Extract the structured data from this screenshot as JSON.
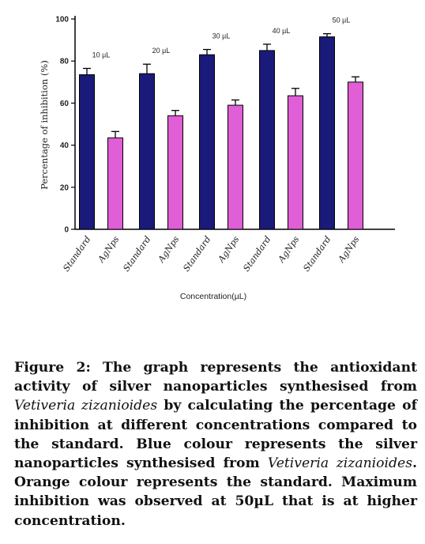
{
  "chart_data": {
    "type": "bar",
    "ylabel": "Percentage of inhibition (%)",
    "xlabel": "Concentration(µL)",
    "ylim": [
      0,
      100
    ],
    "yticks": [
      "0",
      "20",
      "40",
      "60",
      "80",
      "100"
    ],
    "groups": [
      "10 µL",
      "20 µL",
      "30 µL",
      "40 µL",
      "50 µL"
    ],
    "series": [
      {
        "name": "Standard",
        "color": "#1a1a7a",
        "values": [
          73.5,
          74,
          83,
          85,
          91.5
        ],
        "errors": [
          3,
          4.5,
          2.5,
          3,
          1.5
        ]
      },
      {
        "name": "AgNps",
        "color": "#e05ed6",
        "values": [
          43.5,
          54,
          59,
          63.5,
          70
        ],
        "errors": [
          3,
          2.5,
          2.5,
          3.5,
          2.5
        ]
      }
    ]
  },
  "caption": {
    "figure_label": "Figure 2:",
    "text_before": "The graph represents the antioxidant activity of silver nanoparticles synthesised from",
    "species_1": "Vetiveria zizanioides",
    "text_middle": "by calculating the percentage of inhibition at different concentrations compared to the standard. Blue colour represents the silver nanoparticles synthesised from",
    "species_2": "Vetiveria zizanioides",
    "text_after": ". Orange colour represents the standard. Maximum inhibition was observed at 50µL that is at higher concentration."
  }
}
